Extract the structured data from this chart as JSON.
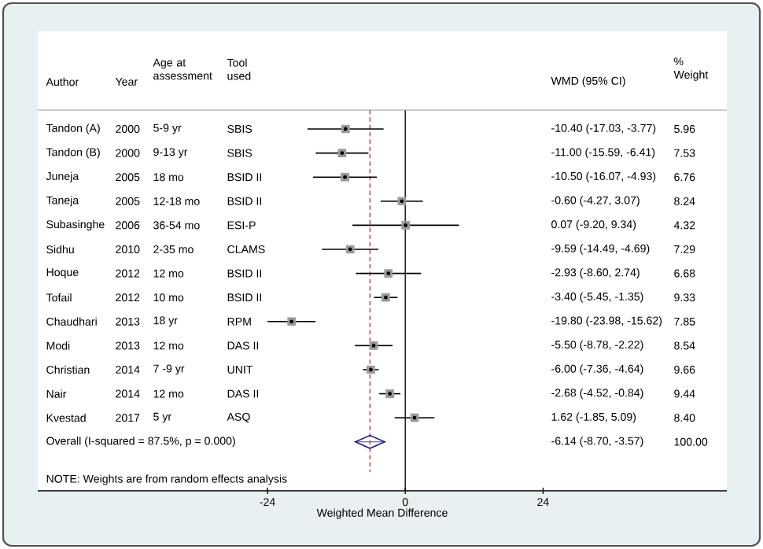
{
  "chart_data": {
    "type": "scatter",
    "ylabel": "Author",
    "xlabel": "Weighted Mean Difference",
    "categories": [
      "Tandon (A)",
      "Tandon (B)",
      "Juneja",
      "Taneja",
      "Subasinghe",
      "Sidhu",
      "Hoque",
      "Tofail",
      "Chaudhari",
      "Modi",
      "Christian",
      "Nair",
      "Kvestad",
      "Overall  (I-squared = 87.5%, p = 0.000)"
    ],
    "series": [
      {
        "marker": "square",
        "color": "#9a9a9a",
        "values": [
          -10.4,
          -11.0,
          -10.5,
          -0.6,
          0.07,
          -9.59,
          -2.93,
          -3.4,
          -19.8,
          -5.5,
          -6.0,
          -2.68,
          1.62,
          null
        ],
        "errors": [
          [
            -17.03,
            -3.77
          ],
          [
            -15.59,
            -6.41
          ],
          [
            -16.07,
            -4.93
          ],
          [
            -4.27,
            3.07
          ],
          [
            -9.2,
            9.34
          ],
          [
            -14.49,
            -4.69
          ],
          [
            -8.6,
            2.74
          ],
          [
            -5.45,
            -1.35
          ],
          [
            -23.98,
            -15.62
          ],
          [
            -8.78,
            -2.22
          ],
          [
            -7.36,
            -4.64
          ],
          [
            -4.52,
            -0.84
          ],
          [
            -1.85,
            5.09
          ],
          null
        ]
      },
      {
        "marker": "diamond",
        "color": "#1f1f8c",
        "values": [
          null,
          null,
          null,
          null,
          null,
          null,
          null,
          null,
          null,
          null,
          null,
          null,
          null,
          -6.14
        ],
        "errors": [
          null,
          null,
          null,
          null,
          null,
          null,
          null,
          null,
          null,
          null,
          null,
          null,
          null,
          [
            -8.7,
            -3.57
          ]
        ]
      }
    ],
    "orientation": "horizontal",
    "xlim": [
      -64,
      56
    ],
    "xticks": [
      -24,
      0,
      24
    ],
    "ref_lines": [
      {
        "axis": "x",
        "value": 0,
        "color": "#000000",
        "line_style": "solid"
      },
      {
        "axis": "x",
        "value": -6.14,
        "color": "#b03030",
        "line_style": "dashed"
      }
    ],
    "annotations": [
      "Year",
      "Age at assessment",
      "Tool used",
      "WMD (95% CI)",
      "% Weight",
      "2000",
      "5-9 yr",
      "SBIS",
      "2000",
      "9-13 yr",
      "SBIS",
      "2005",
      "18 mo",
      "BSID II",
      "2005",
      "12-18 mo",
      "BSID II",
      "2006",
      "36-54 mo",
      "ESI-P",
      "2010",
      "2-35 mo",
      "CLAMS",
      "2012",
      "12 mo",
      "BSID II",
      "2012",
      "10 mo",
      "BSID II",
      "2013",
      "18 yr",
      "RPM",
      "2013",
      "12 mo",
      "DAS II",
      "2014",
      "7 -9 yr",
      "UNIT",
      "2014",
      "12 mo",
      "DAS II",
      "2017",
      "5 yr",
      "ASQ",
      "-10.40 (-17.03, -3.77)",
      "-11.00 (-15.59, -6.41)",
      "-10.50 (-16.07, -4.93)",
      "-0.60 (-4.27, 3.07)",
      "0.07 (-9.20, 9.34)",
      "-9.59 (-14.49, -4.69)",
      "-2.93 (-8.60, 2.74)",
      "-3.40 (-5.45, -1.35)",
      "-19.80 (-23.98, -15.62)",
      "-5.50 (-8.78, -2.22)",
      "-6.00 (-7.36, -4.64)",
      "-2.68 (-4.52, -0.84)",
      "1.62 (-1.85, 5.09)",
      "-6.14 (-8.70, -3.57)",
      "5.96",
      "7.53",
      "6.76",
      "8.24",
      "4.32",
      "7.29",
      "6.68",
      "9.33",
      "7.85",
      "8.54",
      "9.66",
      "9.44",
      "8.40",
      "100.00",
      "NOTE: Weights are from random effects analysis"
    ]
  }
}
